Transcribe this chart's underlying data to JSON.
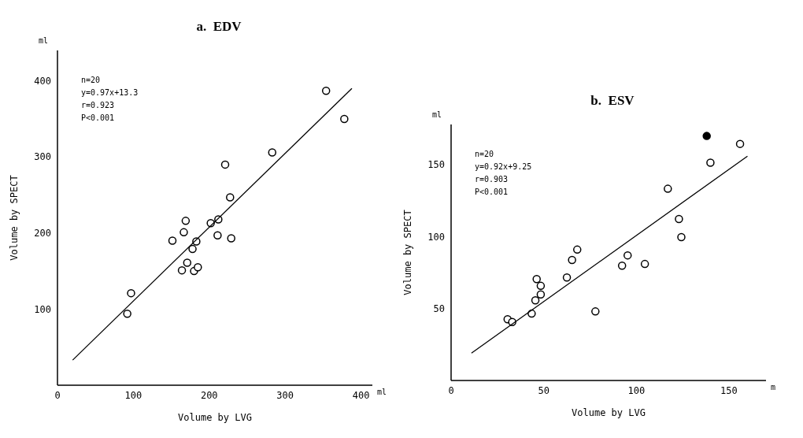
{
  "chart_data": [
    {
      "type": "scatter",
      "title": "a.  EDV",
      "xlabel": "Volume by LVG",
      "ylabel": "Volume by SPECT",
      "marker": "circle",
      "xlim": [
        0,
        415
      ],
      "ylim": [
        0,
        440
      ],
      "xticks": [
        0,
        100,
        200,
        300,
        400
      ],
      "yticks": [
        100,
        200,
        300,
        400
      ],
      "annotations": [
        "n=20",
        "y=0.97x+13.3",
        "r=0.923",
        "P<0.001",
        "ml",
        "ml"
      ],
      "series": [
        {
          "color": "#000000",
          "x": [
            354,
            378,
            283,
            221,
            227.5,
            169,
            166.5,
            202,
            212,
            211,
            229,
            151.5,
            183,
            178,
            171,
            164,
            180,
            185,
            97,
            92
          ],
          "values": [
            387,
            350,
            306,
            290,
            247,
            216,
            201,
            213,
            218,
            197,
            193,
            190,
            189,
            179,
            161,
            151,
            150,
            155,
            121,
            94
          ]
        },
        {
          "type": "line",
          "marker": "none",
          "color": "#000000",
          "x": [
            20,
            388
          ],
          "values": [
            33,
            390
          ]
        }
      ]
    },
    {
      "type": "scatter",
      "title": "b.  ESV",
      "xlabel": "Volume by LVG",
      "ylabel": "Volume by SPECT",
      "marker": "circle",
      "xlim": [
        0,
        170
      ],
      "ylim": [
        0,
        178
      ],
      "xticks": [
        0,
        50,
        100,
        150
      ],
      "yticks": [
        50,
        100,
        150
      ],
      "annotations": [
        "n=20",
        "y=0.92x+9.25",
        "r=0.903",
        "P<0.001",
        "ml",
        "m"
      ],
      "series": [
        {
          "color": "#000000",
          "x": [
            156,
            140,
            117,
            123,
            124.3,
            95.3,
            92.3,
            104.6,
            68.1,
            65.3,
            62.5,
            46.2,
            48.4,
            48.4,
            45.5,
            43.5,
            77.9,
            30.5,
            33
          ],
          "values": [
            164.5,
            151.4,
            133.3,
            112.3,
            99.7,
            87,
            79.8,
            81,
            91,
            83.8,
            71.6,
            70.5,
            65.8,
            59.8,
            55.7,
            46.5,
            48,
            42.6,
            40.7
          ]
        },
        {
          "color": "#000000",
          "x": [
            138
          ],
          "values": [
            170
          ]
        },
        {
          "type": "line",
          "marker": "none",
          "color": "#000000",
          "x": [
            11,
            160
          ],
          "values": [
            19,
            156
          ]
        }
      ]
    }
  ]
}
